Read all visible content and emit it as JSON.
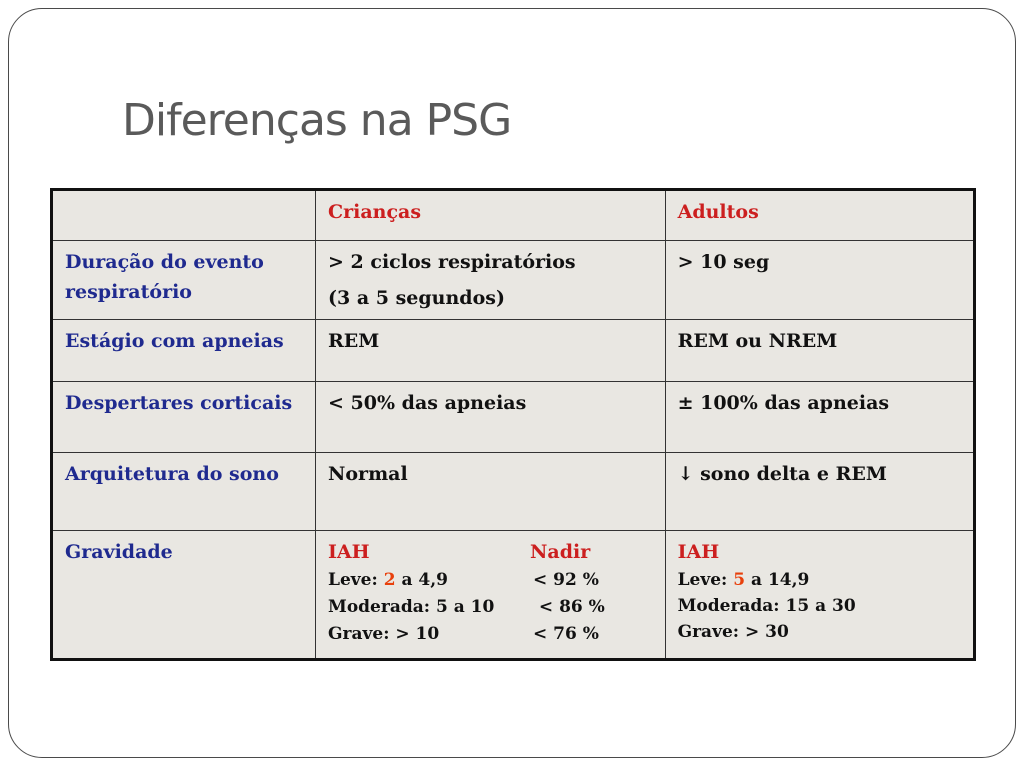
{
  "title": "Diferenças na PSG",
  "table": {
    "headers": [
      "",
      "Crianças",
      "Adultos"
    ],
    "rows": [
      {
        "label": "Duração do evento respiratório",
        "children": "> 2 ciclos respiratórios",
        "children_2": "(3 a 5 segundos)",
        "adults": "> 10 seg"
      },
      {
        "label": "Estágio com apneias",
        "children": "REM",
        "adults": "REM ou NREM"
      },
      {
        "label": "Despertares corticais",
        "children": "< 50% das apneias",
        "adults": "± 100% das apneias"
      },
      {
        "label": "Arquitetura do sono",
        "children": "Normal",
        "adults": "↓ sono delta e REM"
      }
    ],
    "gravity": {
      "label": "Gravidade",
      "children": {
        "head_a": "IAH",
        "head_b": "Nadir",
        "rows": [
          {
            "a_pre": "Leve: ",
            "a_num": "2",
            "a_post": " a 4,9",
            "b": "< 92 %"
          },
          {
            "a_pre": "Moderada: 5 a 10",
            "a_num": "",
            "a_post": "",
            "b": " < 86 %"
          },
          {
            "a_pre": "Grave: > 10",
            "a_num": "",
            "a_post": "",
            "b": "< 76 %"
          }
        ]
      },
      "adults": {
        "head": "IAH",
        "rows": [
          {
            "pre": "Leve: ",
            "num": "5",
            "post": " a 14,9"
          },
          {
            "pre": "Moderada: 15 a 30",
            "num": "",
            "post": ""
          },
          {
            "pre": "Grave: > 30",
            "num": "",
            "post": ""
          }
        ]
      }
    }
  },
  "colors": {
    "label_blue": "#1f2a8f",
    "header_red": "#cc1f1f",
    "number_orange": "#e8400c",
    "cell_bg": "#e9e7e2"
  }
}
